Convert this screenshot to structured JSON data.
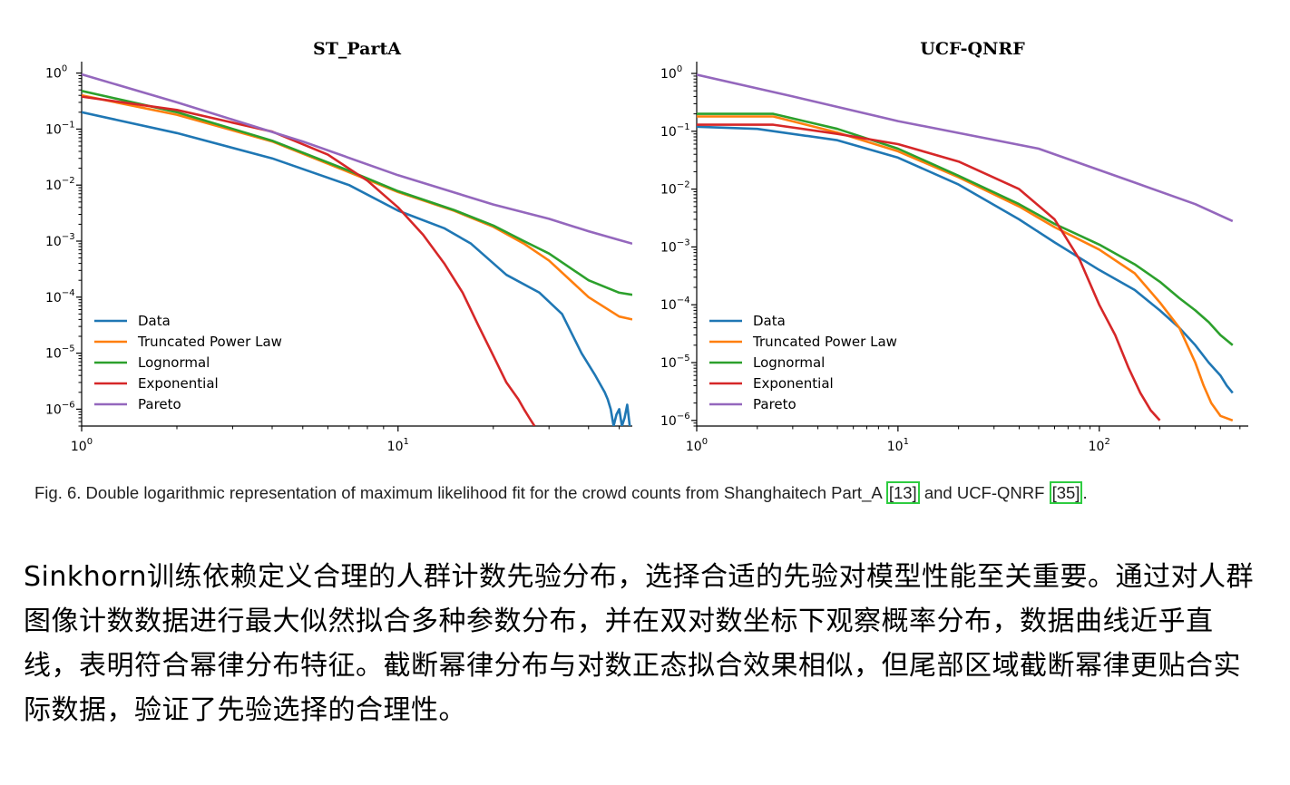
{
  "chart_data": [
    {
      "type": "line",
      "title": "ST_PartA",
      "xscale": "log",
      "yscale": "log",
      "xlim": [
        1,
        55
      ],
      "ylim": [
        5e-07,
        1.6
      ],
      "x_ticks": [
        {
          "v": 1,
          "mant": "10",
          "exp": "0"
        },
        {
          "v": 10,
          "mant": "10",
          "exp": "1"
        }
      ],
      "y_ticks": [
        {
          "v": 1,
          "mant": "10",
          "exp": "0"
        },
        {
          "v": 0.1,
          "mant": "10",
          "exp": "−1"
        },
        {
          "v": 0.01,
          "mant": "10",
          "exp": "−2"
        },
        {
          "v": 0.001,
          "mant": "10",
          "exp": "−3"
        },
        {
          "v": 0.0001,
          "mant": "10",
          "exp": "−4"
        },
        {
          "v": 1e-05,
          "mant": "10",
          "exp": "−5"
        },
        {
          "v": 1e-06,
          "mant": "10",
          "exp": "−6"
        }
      ],
      "legend_position": "lower-left",
      "series": [
        {
          "name": "Data",
          "color": "#1f77b4",
          "x": [
            1,
            2,
            4,
            7,
            10,
            14,
            17,
            22,
            28,
            33,
            38,
            42,
            45,
            46,
            47,
            48,
            49,
            50,
            51,
            52,
            53,
            54
          ],
          "y": [
            0.2,
            0.085,
            0.03,
            0.01,
            0.0035,
            0.0017,
            0.0009,
            0.00025,
            0.00012,
            5e-05,
            1e-05,
            4e-06,
            2e-06,
            1.5e-06,
            1e-06,
            5e-07,
            8e-07,
            1e-06,
            5e-07,
            7e-07,
            1.2e-06,
            5e-07
          ]
        },
        {
          "name": "Truncated Power Law",
          "color": "#ff7f0e",
          "x": [
            1,
            2,
            4,
            7,
            10,
            15,
            20,
            25,
            30,
            40,
            50,
            55
          ],
          "y": [
            0.4,
            0.18,
            0.06,
            0.017,
            0.0075,
            0.0035,
            0.0018,
            0.0009,
            0.00045,
            0.0001,
            4.5e-05,
            4e-05
          ]
        },
        {
          "name": "Lognormal",
          "color": "#2ca02c",
          "x": [
            1,
            2,
            4,
            7,
            10,
            15,
            20,
            25,
            30,
            40,
            50,
            55
          ],
          "y": [
            0.48,
            0.2,
            0.062,
            0.018,
            0.0078,
            0.0036,
            0.0019,
            0.001,
            0.0006,
            0.0002,
            0.00012,
            0.00011
          ]
        },
        {
          "name": "Exponential",
          "color": "#d62728",
          "x": [
            1,
            2,
            4,
            6,
            8,
            10,
            12,
            14,
            16,
            18,
            20,
            22,
            24,
            25,
            26,
            27
          ],
          "y": [
            0.38,
            0.22,
            0.09,
            0.035,
            0.012,
            0.004,
            0.0013,
            0.0004,
            0.00012,
            3e-05,
            9e-06,
            3e-06,
            1.5e-06,
            1e-06,
            7e-07,
            5e-07
          ]
        },
        {
          "name": "Pareto",
          "color": "#9467bd",
          "x": [
            1,
            2,
            5,
            10,
            20,
            30,
            40,
            50,
            55
          ],
          "y": [
            0.95,
            0.3,
            0.06,
            0.015,
            0.0045,
            0.0025,
            0.0015,
            0.00105,
            0.0009
          ]
        }
      ]
    },
    {
      "type": "line",
      "title": "UCF-QNRF",
      "xscale": "log",
      "yscale": "log",
      "xlim": [
        1,
        550
      ],
      "ylim": [
        8e-07,
        1.6
      ],
      "x_ticks": [
        {
          "v": 1,
          "mant": "10",
          "exp": "0"
        },
        {
          "v": 10,
          "mant": "10",
          "exp": "1"
        },
        {
          "v": 100,
          "mant": "10",
          "exp": "2"
        }
      ],
      "y_ticks": [
        {
          "v": 1,
          "mant": "10",
          "exp": "0"
        },
        {
          "v": 0.1,
          "mant": "10",
          "exp": "−1"
        },
        {
          "v": 0.01,
          "mant": "10",
          "exp": "−2"
        },
        {
          "v": 0.001,
          "mant": "10",
          "exp": "−3"
        },
        {
          "v": 0.0001,
          "mant": "10",
          "exp": "−4"
        },
        {
          "v": 1e-05,
          "mant": "10",
          "exp": "−5"
        },
        {
          "v": 1e-06,
          "mant": "10",
          "exp": "−6"
        }
      ],
      "legend_position": "lower-left",
      "series": [
        {
          "name": "Data",
          "color": "#1f77b4",
          "x": [
            1,
            2,
            5,
            10,
            20,
            40,
            60,
            100,
            150,
            200,
            250,
            300,
            350,
            400,
            430,
            460
          ],
          "y": [
            0.12,
            0.11,
            0.07,
            0.035,
            0.012,
            0.003,
            0.0012,
            0.0004,
            0.00018,
            8e-05,
            4e-05,
            2e-05,
            1e-05,
            6e-06,
            4e-06,
            3e-06
          ]
        },
        {
          "name": "Truncated Power Law",
          "color": "#ff7f0e",
          "x": [
            1,
            2.4,
            5,
            10,
            20,
            40,
            60,
            100,
            150,
            200,
            250,
            300,
            330,
            360,
            400,
            460
          ],
          "y": [
            0.18,
            0.18,
            0.095,
            0.045,
            0.016,
            0.005,
            0.0022,
            0.0009,
            0.00035,
            0.00011,
            4e-05,
            1e-05,
            4e-06,
            2e-06,
            1.2e-06,
            1e-06
          ]
        },
        {
          "name": "Lognormal",
          "color": "#2ca02c",
          "x": [
            1,
            2.4,
            5,
            10,
            20,
            40,
            60,
            100,
            150,
            200,
            250,
            300,
            350,
            400,
            460
          ],
          "y": [
            0.2,
            0.2,
            0.11,
            0.05,
            0.017,
            0.0055,
            0.0025,
            0.0011,
            0.0005,
            0.00025,
            0.00013,
            8e-05,
            5e-05,
            3e-05,
            2e-05
          ]
        },
        {
          "name": "Exponential",
          "color": "#d62728",
          "x": [
            1,
            2.4,
            5,
            10,
            20,
            40,
            60,
            80,
            100,
            120,
            140,
            160,
            180,
            200
          ],
          "y": [
            0.13,
            0.13,
            0.09,
            0.06,
            0.03,
            0.01,
            0.003,
            0.0006,
            0.0001,
            3e-05,
            8e-06,
            3e-06,
            1.5e-06,
            1e-06
          ]
        },
        {
          "name": "Pareto",
          "color": "#9467bd",
          "x": [
            1,
            3,
            10,
            50,
            150,
            300,
            460
          ],
          "y": [
            0.95,
            0.4,
            0.15,
            0.05,
            0.013,
            0.0055,
            0.0028
          ]
        }
      ]
    }
  ],
  "caption": {
    "prefix": "Fig. 6. Double logarithmic representation of maximum likelihood fit for the crowd counts from Shanghaitech Part_A ",
    "ref1": "[13]",
    "middle": " and UCF-QNRF ",
    "ref2": "[35]",
    "suffix": "."
  },
  "body_text": "Sinkhorn训练依赖定义合理的人群计数先验分布，选择合适的先验对模型性能至关重要。通过对人群图像计数数据进行最大似然拟合多种参数分布，并在双对数坐标下观察概率分布，数据曲线近乎直线，表明符合幂律分布特征。截断幂律分布与对数正态拟合效果相似，但尾部区域截断幂律更贴合实际数据，验证了先验选择的合理性。"
}
